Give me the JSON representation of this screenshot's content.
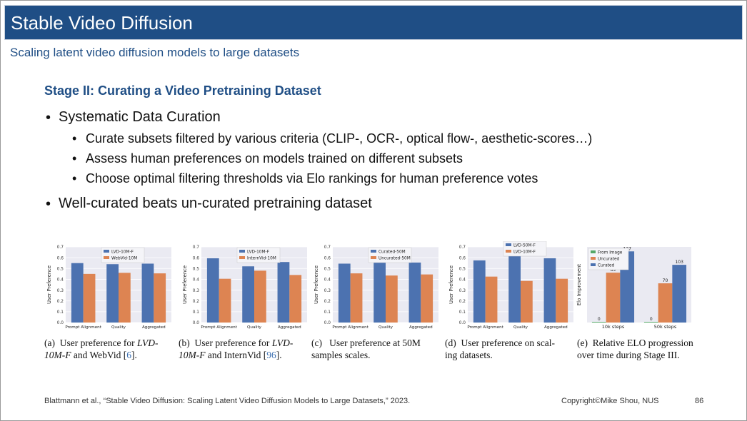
{
  "header": {
    "title": "Stable Video Diffusion",
    "subtitle": "Scaling latent video diffusion models to large datasets"
  },
  "content": {
    "stage_title": "Stage II: Curating a Video Pretraining Dataset",
    "bullet1": "Systematic Data Curation",
    "sub1": "Curate subsets filtered by various criteria (CLIP-, OCR-, optical flow-, aesthetic-scores…)",
    "sub2": "Assess human preferences on models trained on different subsets",
    "sub3": "Choose optimal filtering thresholds via Elo rankings for human preference votes",
    "bullet2": "Well-curated beats un-curated pretraining dataset"
  },
  "colors": {
    "blue": "#4c72b0",
    "orange": "#dd8452",
    "green": "#55a868",
    "title_bg": "#1f4e85",
    "plot_bg": "#eaeaf2"
  },
  "chart_data": [
    {
      "type": "bar",
      "categories": [
        "Prompt Alignment",
        "Quality",
        "Aggregated"
      ],
      "ylabel": "User Preference",
      "ylim": [
        0,
        0.7
      ],
      "yticks": [
        "0.0",
        "0.1",
        "0.2",
        "0.3",
        "0.4",
        "0.5",
        "0.6",
        "0.7"
      ],
      "legend": "top-center",
      "series": [
        {
          "name": "LVD-10M-F",
          "values": [
            0.55,
            0.54,
            0.545
          ]
        },
        {
          "name": "WebVid-10M",
          "values": [
            0.45,
            0.46,
            0.455
          ]
        }
      ]
    },
    {
      "type": "bar",
      "categories": [
        "Prompt Alignment",
        "Quality",
        "Aggregated"
      ],
      "ylabel": "User Preference",
      "ylim": [
        0,
        0.7
      ],
      "yticks": [
        "0.0",
        "0.1",
        "0.2",
        "0.3",
        "0.4",
        "0.5",
        "0.6",
        "0.7"
      ],
      "legend": "top-center",
      "series": [
        {
          "name": "LVD-10M-F",
          "values": [
            0.595,
            0.52,
            0.56
          ]
        },
        {
          "name": "InternVid-10M",
          "values": [
            0.405,
            0.48,
            0.44
          ]
        }
      ]
    },
    {
      "type": "bar",
      "categories": [
        "Prompt Alignment",
        "Quality",
        "Aggregated"
      ],
      "ylabel": "User Preference",
      "ylim": [
        0,
        0.7
      ],
      "yticks": [
        "0.0",
        "0.1",
        "0.2",
        "0.3",
        "0.4",
        "0.5",
        "0.6",
        "0.7"
      ],
      "legend": "top-center",
      "series": [
        {
          "name": "Curated-50M",
          "values": [
            0.545,
            0.565,
            0.555
          ]
        },
        {
          "name": "Uncurated-50M",
          "values": [
            0.455,
            0.435,
            0.445
          ]
        }
      ]
    },
    {
      "type": "bar",
      "categories": [
        "Prompt Alignment",
        "Quality",
        "Aggregated"
      ],
      "ylabel": "User Preference",
      "ylim": [
        0,
        0.7
      ],
      "yticks": [
        "0.0",
        "0.1",
        "0.2",
        "0.3",
        "0.4",
        "0.5",
        "0.6",
        "0.7"
      ],
      "legend": "top-center",
      "series": [
        {
          "name": "LVD-50M-F",
          "values": [
            0.575,
            0.615,
            0.595
          ]
        },
        {
          "name": "LVD-10M-F",
          "values": [
            0.425,
            0.385,
            0.405
          ]
        }
      ]
    },
    {
      "type": "bar",
      "categories": [
        "10k steps",
        "50k steps"
      ],
      "ylabel": "Elo Improvement",
      "ylim": [
        0,
        135
      ],
      "yticks": [],
      "legend": "top-left",
      "value_labels": true,
      "series": [
        {
          "name": "From Image",
          "values": [
            0,
            0
          ]
        },
        {
          "name": "Uncurated",
          "values": [
            89,
            70
          ]
        },
        {
          "name": "Curated",
          "values": [
            127,
            103
          ]
        }
      ]
    }
  ],
  "captions": [
    {
      "label": "(a)",
      "pre": "User preference for ",
      "em": "LVD-10M-F",
      "mid": " and WebVid [",
      "ref": "6",
      "post": "]."
    },
    {
      "label": "(b)",
      "pre": "User preference for ",
      "em": "LVD-10M-F",
      "mid": " and InternVid [",
      "ref": "96",
      "post": "]."
    },
    {
      "label": "(c)",
      "text1": "User preference at 50M",
      "text2": "samples scales."
    },
    {
      "label": "(d)",
      "text1": "User preference on scal-",
      "text2": "ing datasets."
    },
    {
      "label": "(e)",
      "text1": "Relative ELO progression",
      "text2": "over time during Stage III."
    }
  ],
  "footer": {
    "citation": "Blattmann et al., “Stable Video Diffusion: Scaling Latent Video Diffusion Models to Large Datasets,” 2023.",
    "copyright": "Copyright©Mike Shou, NUS",
    "page": "86"
  }
}
